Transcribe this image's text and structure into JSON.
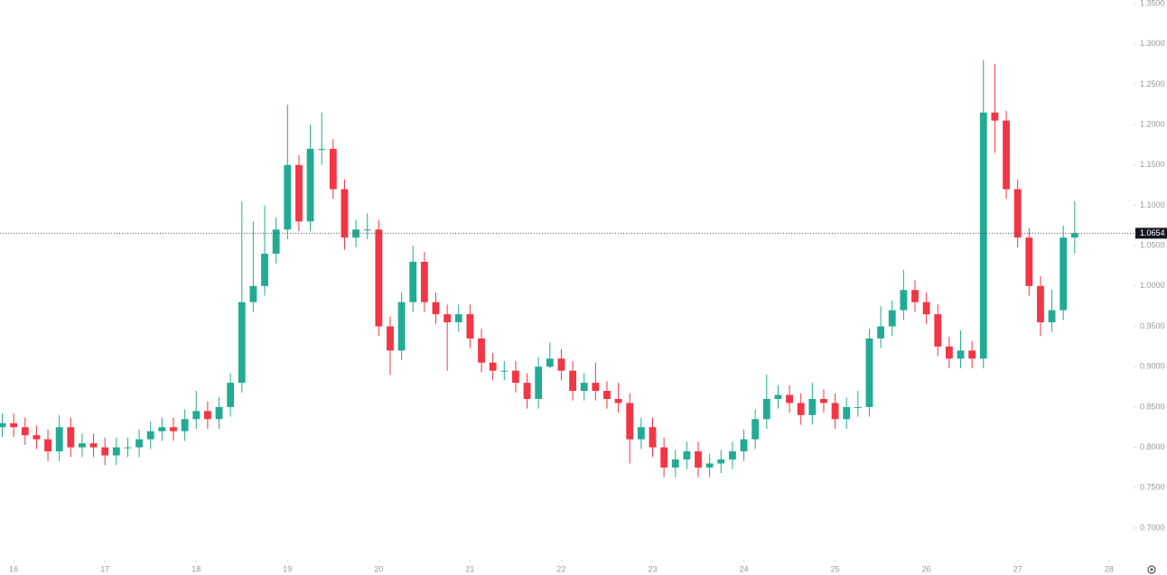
{
  "chart_data": {
    "type": "candlestick",
    "x": [
      15.875,
      16,
      16.125,
      16.25,
      16.375,
      16.5,
      16.625,
      16.75,
      16.875,
      17,
      17.125,
      17.25,
      17.375,
      17.5,
      17.625,
      17.75,
      17.875,
      18,
      18.125,
      18.25,
      18.375,
      18.5,
      18.625,
      18.75,
      18.875,
      19,
      19.125,
      19.25,
      19.375,
      19.5,
      19.625,
      19.75,
      19.875,
      20,
      20.125,
      20.25,
      20.375,
      20.5,
      20.625,
      20.75,
      20.875,
      21,
      21.125,
      21.25,
      21.375,
      21.5,
      21.625,
      21.75,
      21.875,
      22,
      22.125,
      22.25,
      22.375,
      22.5,
      22.625,
      22.75,
      22.875,
      23,
      23.125,
      23.25,
      23.375,
      23.5,
      23.625,
      23.75,
      23.875,
      24,
      24.125,
      24.25,
      24.375,
      24.5,
      24.625,
      24.75,
      24.875,
      25,
      25.125,
      25.25,
      25.375,
      25.5,
      25.625,
      25.75,
      25.875,
      26,
      26.125,
      26.25,
      26.375,
      26.5,
      26.625,
      26.75,
      26.875,
      27,
      27.125,
      27.25,
      27.375,
      27.5,
      27.625
    ],
    "open": [
      0.825,
      0.83,
      0.825,
      0.815,
      0.81,
      0.795,
      0.825,
      0.8,
      0.805,
      0.8,
      0.79,
      0.8,
      0.8,
      0.81,
      0.82,
      0.825,
      0.82,
      0.835,
      0.845,
      0.835,
      0.85,
      0.88,
      0.98,
      1.0,
      1.04,
      1.07,
      1.15,
      1.08,
      1.17,
      1.17,
      1.12,
      1.06,
      1.07,
      1.07,
      0.95,
      0.92,
      0.98,
      1.03,
      0.98,
      0.965,
      0.955,
      0.965,
      0.935,
      0.905,
      0.895,
      0.895,
      0.88,
      0.86,
      0.9,
      0.91,
      0.895,
      0.87,
      0.88,
      0.87,
      0.86,
      0.855,
      0.81,
      0.825,
      0.8,
      0.775,
      0.785,
      0.795,
      0.775,
      0.78,
      0.785,
      0.795,
      0.81,
      0.835,
      0.86,
      0.865,
      0.855,
      0.84,
      0.86,
      0.855,
      0.835,
      0.85,
      0.85,
      0.935,
      0.95,
      0.97,
      0.995,
      0.98,
      0.965,
      0.925,
      0.91,
      0.92,
      0.91,
      1.215,
      1.205,
      1.12,
      1.06,
      1.0,
      0.955,
      0.97,
      1.06
    ],
    "high": [
      0.842,
      0.842,
      0.837,
      0.827,
      0.822,
      0.84,
      0.837,
      0.817,
      0.817,
      0.812,
      0.812,
      0.812,
      0.822,
      0.832,
      0.837,
      0.837,
      0.847,
      0.87,
      0.857,
      0.862,
      0.892,
      1.105,
      1.08,
      1.1,
      1.085,
      1.225,
      1.162,
      1.2,
      1.215,
      1.182,
      1.132,
      1.082,
      1.09,
      1.082,
      0.962,
      0.992,
      1.05,
      1.042,
      0.992,
      0.977,
      0.977,
      0.977,
      0.947,
      0.917,
      0.907,
      0.907,
      0.892,
      0.912,
      0.93,
      0.922,
      0.907,
      0.892,
      0.905,
      0.882,
      0.88,
      0.867,
      0.837,
      0.837,
      0.812,
      0.797,
      0.807,
      0.807,
      0.792,
      0.797,
      0.807,
      0.822,
      0.847,
      0.89,
      0.877,
      0.877,
      0.867,
      0.88,
      0.872,
      0.867,
      0.862,
      0.87,
      0.947,
      0.975,
      0.982,
      1.02,
      1.007,
      0.992,
      0.977,
      0.937,
      0.945,
      0.932,
      1.28,
      1.275,
      1.217,
      1.132,
      1.072,
      1.012,
      0.995,
      1.075,
      1.105
    ],
    "low": [
      0.813,
      0.813,
      0.803,
      0.798,
      0.783,
      0.783,
      0.788,
      0.788,
      0.788,
      0.778,
      0.778,
      0.788,
      0.788,
      0.798,
      0.808,
      0.808,
      0.808,
      0.823,
      0.823,
      0.823,
      0.838,
      0.868,
      0.968,
      0.988,
      1.028,
      1.058,
      1.068,
      1.068,
      1.15,
      1.108,
      1.045,
      1.048,
      1.058,
      0.938,
      0.89,
      0.908,
      0.968,
      0.968,
      0.953,
      0.895,
      0.943,
      0.923,
      0.893,
      0.883,
      0.883,
      0.868,
      0.848,
      0.848,
      0.898,
      0.883,
      0.858,
      0.858,
      0.858,
      0.848,
      0.843,
      0.78,
      0.798,
      0.788,
      0.763,
      0.763,
      0.773,
      0.763,
      0.763,
      0.768,
      0.773,
      0.783,
      0.798,
      0.823,
      0.848,
      0.843,
      0.828,
      0.828,
      0.843,
      0.823,
      0.823,
      0.838,
      0.838,
      0.923,
      0.938,
      0.958,
      0.968,
      0.953,
      0.913,
      0.898,
      0.898,
      0.898,
      0.898,
      1.165,
      1.108,
      1.048,
      0.988,
      0.938,
      0.943,
      0.958,
      1.04
    ],
    "close": [
      0.83,
      0.825,
      0.815,
      0.81,
      0.795,
      0.825,
      0.8,
      0.805,
      0.8,
      0.79,
      0.8,
      0.8,
      0.81,
      0.82,
      0.825,
      0.82,
      0.835,
      0.845,
      0.835,
      0.85,
      0.88,
      0.98,
      1.0,
      1.04,
      1.07,
      1.15,
      1.08,
      1.17,
      1.17,
      1.12,
      1.06,
      1.07,
      1.07,
      0.95,
      0.92,
      0.98,
      1.03,
      0.98,
      0.965,
      0.955,
      0.965,
      0.935,
      0.905,
      0.895,
      0.895,
      0.88,
      0.86,
      0.9,
      0.91,
      0.895,
      0.87,
      0.88,
      0.87,
      0.86,
      0.855,
      0.81,
      0.825,
      0.8,
      0.775,
      0.785,
      0.795,
      0.775,
      0.78,
      0.785,
      0.795,
      0.81,
      0.835,
      0.86,
      0.865,
      0.855,
      0.84,
      0.86,
      0.855,
      0.835,
      0.85,
      0.85,
      0.935,
      0.95,
      0.97,
      0.995,
      0.98,
      0.965,
      0.925,
      0.91,
      0.92,
      0.91,
      1.215,
      1.205,
      1.12,
      1.06,
      1.0,
      0.955,
      0.97,
      1.06,
      1.0654
    ],
    "up_color": "#22ab94",
    "down_color": "#f23645",
    "last_price": 1.0654,
    "xlim": [
      15.85,
      28.27
    ],
    "xticks": [
      16,
      17,
      18,
      19,
      20,
      21,
      22,
      23,
      24,
      25,
      26,
      27,
      28
    ],
    "ylim": [
      0.6608,
      1.3545
    ],
    "yticks": [
      {
        "value": 0.7,
        "label": "0.7000"
      },
      {
        "value": 0.75,
        "label": "0.7500"
      },
      {
        "value": 0.8,
        "label": "0.8000"
      },
      {
        "value": 0.85,
        "label": "0.8500"
      },
      {
        "value": 0.9,
        "label": "0.9000"
      },
      {
        "value": 0.95,
        "label": "0.9500"
      },
      {
        "value": 1.0,
        "label": "1.0000"
      },
      {
        "value": 1.05,
        "label": "1.0500"
      },
      {
        "value": 1.1,
        "label": "1.1000"
      },
      {
        "value": 1.15,
        "label": "1.1500"
      },
      {
        "value": 1.2,
        "label": "1.2000"
      },
      {
        "value": 1.25,
        "label": "1.2500"
      },
      {
        "value": 1.3,
        "label": "1.3000"
      },
      {
        "value": 1.35,
        "label": "1.3500"
      }
    ]
  }
}
